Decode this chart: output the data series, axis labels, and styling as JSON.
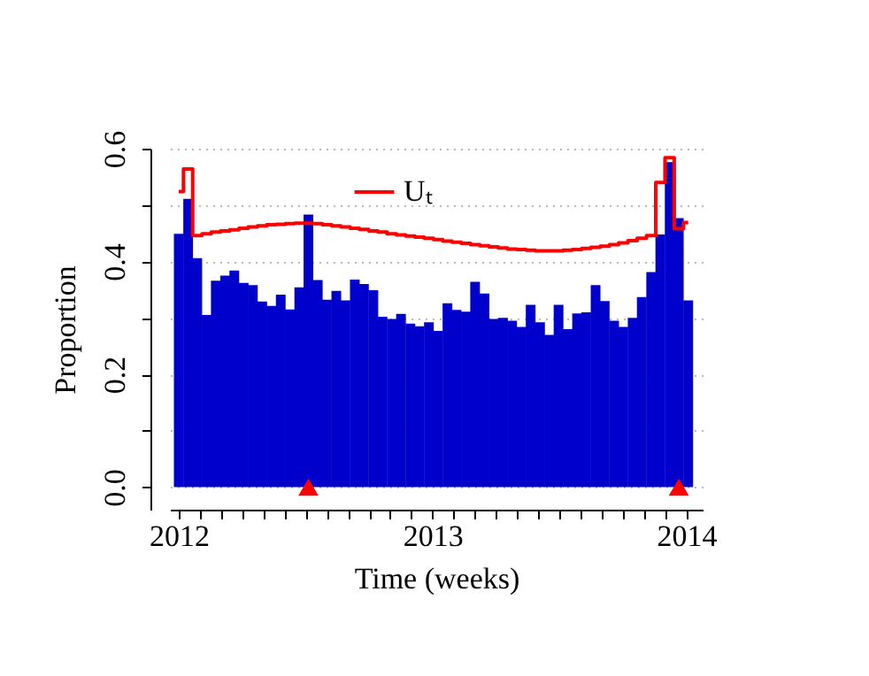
{
  "chart_data": {
    "type": "bar",
    "xlabel": "Time (weeks)",
    "ylabel": "Proportion",
    "x": [
      2012.0,
      2012.037,
      2012.073,
      2012.11,
      2012.146,
      2012.183,
      2012.219,
      2012.256,
      2012.292,
      2012.329,
      2012.365,
      2012.402,
      2012.438,
      2012.475,
      2012.511,
      2012.548,
      2012.584,
      2012.621,
      2012.657,
      2012.694,
      2012.73,
      2012.767,
      2012.803,
      2012.84,
      2012.876,
      2012.913,
      2012.949,
      2012.986,
      2013.022,
      2013.059,
      2013.095,
      2013.132,
      2013.168,
      2013.205,
      2013.241,
      2013.278,
      2013.314,
      2013.351,
      2013.387,
      2013.424,
      2013.46,
      2013.497,
      2013.533,
      2013.57,
      2013.606,
      2013.643,
      2013.679,
      2013.716,
      2013.752,
      2013.789,
      2013.825,
      2013.862,
      2013.898,
      2013.935,
      2013.971,
      2014.008
    ],
    "series": [
      {
        "color": "#0000cc",
        "values": [
          0.449,
          0.511,
          0.406,
          0.305,
          0.366,
          0.375,
          0.384,
          0.362,
          0.358,
          0.329,
          0.321,
          0.341,
          0.315,
          0.354,
          0.483,
          0.367,
          0.332,
          0.348,
          0.331,
          0.368,
          0.36,
          0.349,
          0.302,
          0.298,
          0.307,
          0.29,
          0.285,
          0.292,
          0.277,
          0.326,
          0.314,
          0.311,
          0.364,
          0.343,
          0.298,
          0.3,
          0.295,
          0.284,
          0.323,
          0.292,
          0.27,
          0.323,
          0.28,
          0.308,
          0.31,
          0.358,
          0.33,
          0.295,
          0.284,
          0.3,
          0.337,
          0.381,
          0.448,
          0.576,
          0.477,
          0.331
        ]
      },
      {
        "type": "step",
        "name": "Uₜ",
        "color": "#ff0000",
        "values": [
          0.524,
          0.564,
          0.446,
          0.449,
          0.452,
          0.454,
          0.456,
          0.459,
          0.461,
          0.463,
          0.465,
          0.466,
          0.467,
          0.468,
          0.468,
          0.467,
          0.465,
          0.463,
          0.461,
          0.459,
          0.457,
          0.454,
          0.452,
          0.449,
          0.447,
          0.445,
          0.443,
          0.441,
          0.439,
          0.436,
          0.434,
          0.432,
          0.43,
          0.428,
          0.426,
          0.424,
          0.422,
          0.421,
          0.42,
          0.419,
          0.419,
          0.419,
          0.42,
          0.421,
          0.423,
          0.425,
          0.427,
          0.43,
          0.433,
          0.437,
          0.441,
          0.446,
          0.54,
          0.584,
          0.458,
          0.469
        ]
      },
      {
        "type": "scatter",
        "color": "#ff0000",
        "marker": "triangle",
        "x": [
          2012.511,
          2013.971
        ],
        "values": [
          0,
          0
        ]
      }
    ],
    "xlim": [
      2012,
      2014.03
    ],
    "xticks": [
      2012,
      {
        "value": 2012.083,
        "label": null
      },
      {
        "value": 2012.167,
        "label": null
      },
      {
        "value": 2012.25,
        "label": null
      },
      {
        "value": 2012.333,
        "label": null
      },
      {
        "value": 2012.417,
        "label": null
      },
      {
        "value": 2012.5,
        "label": null
      },
      {
        "value": 2012.583,
        "label": null
      },
      {
        "value": 2012.667,
        "label": null
      },
      {
        "value": 2012.75,
        "label": null
      },
      {
        "value": 2012.833,
        "label": null
      },
      {
        "value": 2012.917,
        "label": null
      },
      2013,
      {
        "value": 2013.083,
        "label": null
      },
      {
        "value": 2013.167,
        "label": null
      },
      {
        "value": 2013.25,
        "label": null
      },
      {
        "value": 2013.333,
        "label": null
      },
      {
        "value": 2013.417,
        "label": null
      },
      {
        "value": 2013.5,
        "label": null
      },
      {
        "value": 2013.583,
        "label": null
      },
      {
        "value": 2013.667,
        "label": null
      },
      {
        "value": 2013.75,
        "label": null
      },
      {
        "value": 2013.833,
        "label": null
      },
      {
        "value": 2013.917,
        "label": null
      },
      2014
    ],
    "ylim": [
      -0.04,
      0.6
    ],
    "yticks": [
      {
        "value": 0,
        "label": "0.0"
      },
      {
        "value": 0.1,
        "label": null
      },
      0.2,
      {
        "value": 0.3,
        "label": null
      },
      0.4,
      {
        "value": 0.5,
        "label": null
      },
      0.6
    ],
    "grid": "y",
    "legend": "top"
  }
}
